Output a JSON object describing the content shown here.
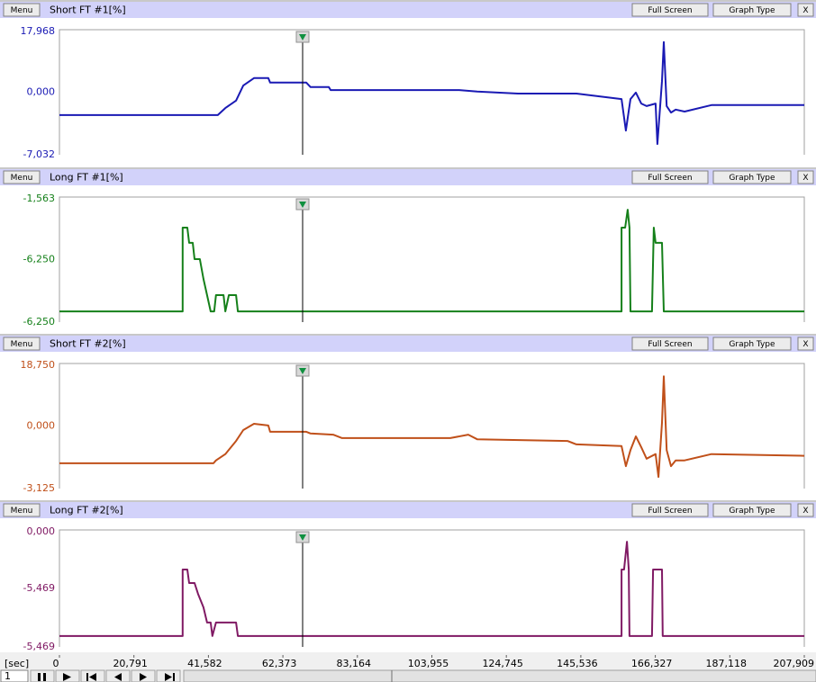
{
  "panels": [
    {
      "menu": "Menu",
      "title": "Short FT #1[%]",
      "full_screen": "Full Screen",
      "graph_type": "Graph Type",
      "close": "X",
      "color": "#1a1ab4",
      "ylim": [
        -7.032,
        17.968
      ],
      "axis_labels": [
        "17,968",
        "0,000",
        "-7,032"
      ],
      "x": [
        0,
        44.2,
        46.3,
        49.3,
        51.3,
        54.3,
        58.3,
        58.8,
        68.9,
        70.1,
        75.2,
        75.7,
        111.6,
        116.6,
        128.0,
        144.3,
        156.9,
        158.1,
        159.4,
        160.9,
        162.4,
        163.9,
        166.4,
        166.9,
        168.2,
        168.7,
        169.5,
        170.7,
        172.0,
        174.5,
        182.0,
        207.9
      ],
      "y": [
        0.9,
        0.9,
        2.3,
        3.8,
        6.8,
        8.3,
        8.3,
        7.4,
        7.4,
        6.5,
        6.5,
        5.9,
        5.9,
        5.6,
        5.2,
        5.2,
        4.1,
        -2.2,
        4.1,
        5.4,
        3.2,
        2.7,
        3.2,
        -4.9,
        7.7,
        15.5,
        2.7,
        1.4,
        2.0,
        1.6,
        2.9,
        2.9
      ]
    },
    {
      "menu": "Menu",
      "title": "Long FT #1[%]",
      "full_screen": "Full Screen",
      "graph_type": "Graph Type",
      "close": "X",
      "color": "#15801a",
      "ylim": [
        -6.25,
        -1.563
      ],
      "axis_labels": [
        "-1,563",
        "-6,250",
        "-6,250"
      ],
      "x": [
        0,
        34.4,
        34.4,
        35.7,
        36.2,
        37.2,
        37.7,
        39.2,
        40.2,
        41.2,
        42.2,
        43.2,
        43.7,
        45.8,
        46.3,
        47.3,
        49.3,
        49.8,
        156.9,
        156.9,
        157.9,
        158.6,
        159.1,
        159.4,
        165.4,
        165.9,
        166.4,
        168.2,
        168.7,
        207.9
      ],
      "y": [
        -5.85,
        -5.85,
        -2.71,
        -2.71,
        -3.28,
        -3.28,
        -3.89,
        -3.89,
        -4.63,
        -5.24,
        -5.85,
        -5.85,
        -5.24,
        -5.24,
        -5.85,
        -5.24,
        -5.24,
        -5.85,
        -5.85,
        -2.71,
        -2.71,
        -2.04,
        -2.71,
        -5.85,
        -5.85,
        -2.71,
        -3.28,
        -3.28,
        -5.85,
        -5.85
      ]
    },
    {
      "menu": "Menu",
      "title": "Short FT #2[%]",
      "full_screen": "Full Screen",
      "graph_type": "Graph Type",
      "close": "X",
      "color": "#c0501a",
      "ylim": [
        -3.125,
        18.75
      ],
      "axis_labels": [
        "18,750",
        "0,000",
        "-3,125"
      ],
      "x": [
        0,
        43.0,
        43.7,
        46.3,
        49.3,
        51.3,
        54.3,
        58.3,
        58.8,
        68.9,
        70.1,
        76.4,
        78.9,
        109.1,
        114.1,
        116.6,
        141.8,
        144.3,
        156.9,
        158.1,
        159.4,
        160.9,
        162.4,
        163.9,
        166.4,
        167.2,
        168.2,
        168.7,
        169.5,
        170.7,
        172.0,
        174.5,
        182.0,
        207.9
      ],
      "y": [
        1.3,
        1.3,
        1.8,
        2.9,
        5.2,
        7.1,
        8.2,
        7.9,
        6.8,
        6.8,
        6.5,
        6.3,
        5.7,
        5.7,
        6.3,
        5.5,
        5.2,
        4.6,
        4.3,
        0.8,
        3.6,
        6.0,
        4.1,
        2.1,
        2.9,
        -1.1,
        8.4,
        16.5,
        3.6,
        0.8,
        1.8,
        1.8,
        2.9,
        2.6
      ]
    },
    {
      "menu": "Menu",
      "title": "Long FT #2[%]",
      "full_screen": "Full Screen",
      "graph_type": "Graph Type",
      "close": "X",
      "color": "#801a64",
      "ylim": [
        -5.469,
        0
      ],
      "axis_labels": [
        "0,000",
        "-5,469",
        "-5,469"
      ],
      "x": [
        0,
        34.4,
        34.4,
        35.7,
        36.2,
        37.7,
        38.7,
        40.2,
        41.2,
        42.2,
        42.7,
        43.7,
        49.3,
        49.8,
        156.9,
        156.9,
        157.6,
        158.4,
        158.9,
        159.1,
        165.4,
        165.7,
        168.2,
        168.4,
        207.9
      ],
      "y": [
        -4.96,
        -4.96,
        -1.85,
        -1.85,
        -2.48,
        -2.48,
        -2.99,
        -3.62,
        -4.33,
        -4.33,
        -4.96,
        -4.33,
        -4.33,
        -4.96,
        -4.96,
        -1.85,
        -1.85,
        -0.55,
        -1.85,
        -4.96,
        -4.96,
        -1.85,
        -1.85,
        -4.96,
        -4.96
      ]
    }
  ],
  "x_axis": {
    "unit": "[sec]",
    "xlim": [
      0,
      207.909
    ],
    "xticks": [
      0,
      {
        "value": 20.791,
        "label": "20,791"
      },
      {
        "value": 41.582,
        "label": "41,582"
      },
      {
        "value": 62.373,
        "label": "62,373"
      },
      {
        "value": 83.164,
        "label": "83,164"
      },
      {
        "value": 103.955,
        "label": "103,955"
      },
      {
        "value": 124.745,
        "label": "124,745"
      },
      {
        "value": 145.536,
        "label": "145,536"
      },
      {
        "value": 166.327,
        "label": "166,327"
      },
      {
        "value": 187.118,
        "label": "187,118"
      },
      {
        "value": 207.909,
        "label": "207,909"
      }
    ]
  },
  "controls": {
    "frame": "1"
  }
}
